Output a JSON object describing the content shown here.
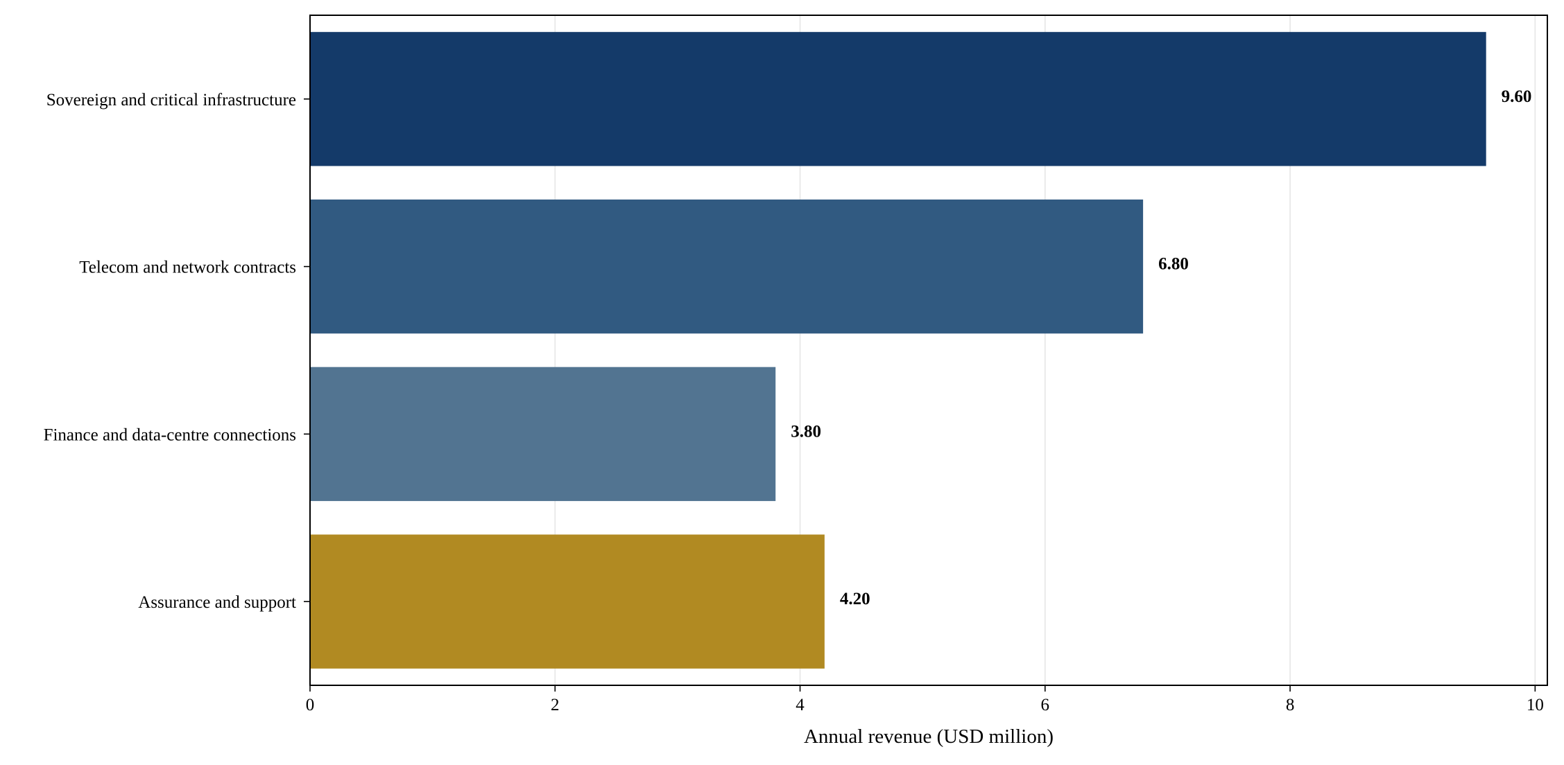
{
  "chart_data": {
    "type": "bar",
    "orientation": "horizontal",
    "categories": [
      "Sovereign and critical infrastructure",
      "Telecom and network contracts",
      "Finance and data-centre connections",
      "Assurance and support"
    ],
    "values": [
      9.6,
      6.8,
      3.8,
      4.2
    ],
    "value_labels": [
      "9.60",
      "6.80",
      "3.80",
      "4.20"
    ],
    "colors": [
      "#143a69",
      "#315a81",
      "#527491",
      "#b18a22"
    ],
    "title": "",
    "xlabel": "Annual revenue (USD million)",
    "ylabel": "",
    "xlim": [
      0,
      10.1
    ],
    "xticks": [
      0,
      2,
      4,
      6,
      8,
      10
    ],
    "xtick_labels": [
      "0",
      "2",
      "4",
      "6",
      "8",
      "10"
    ],
    "grid": "vertical",
    "legend": "none"
  }
}
